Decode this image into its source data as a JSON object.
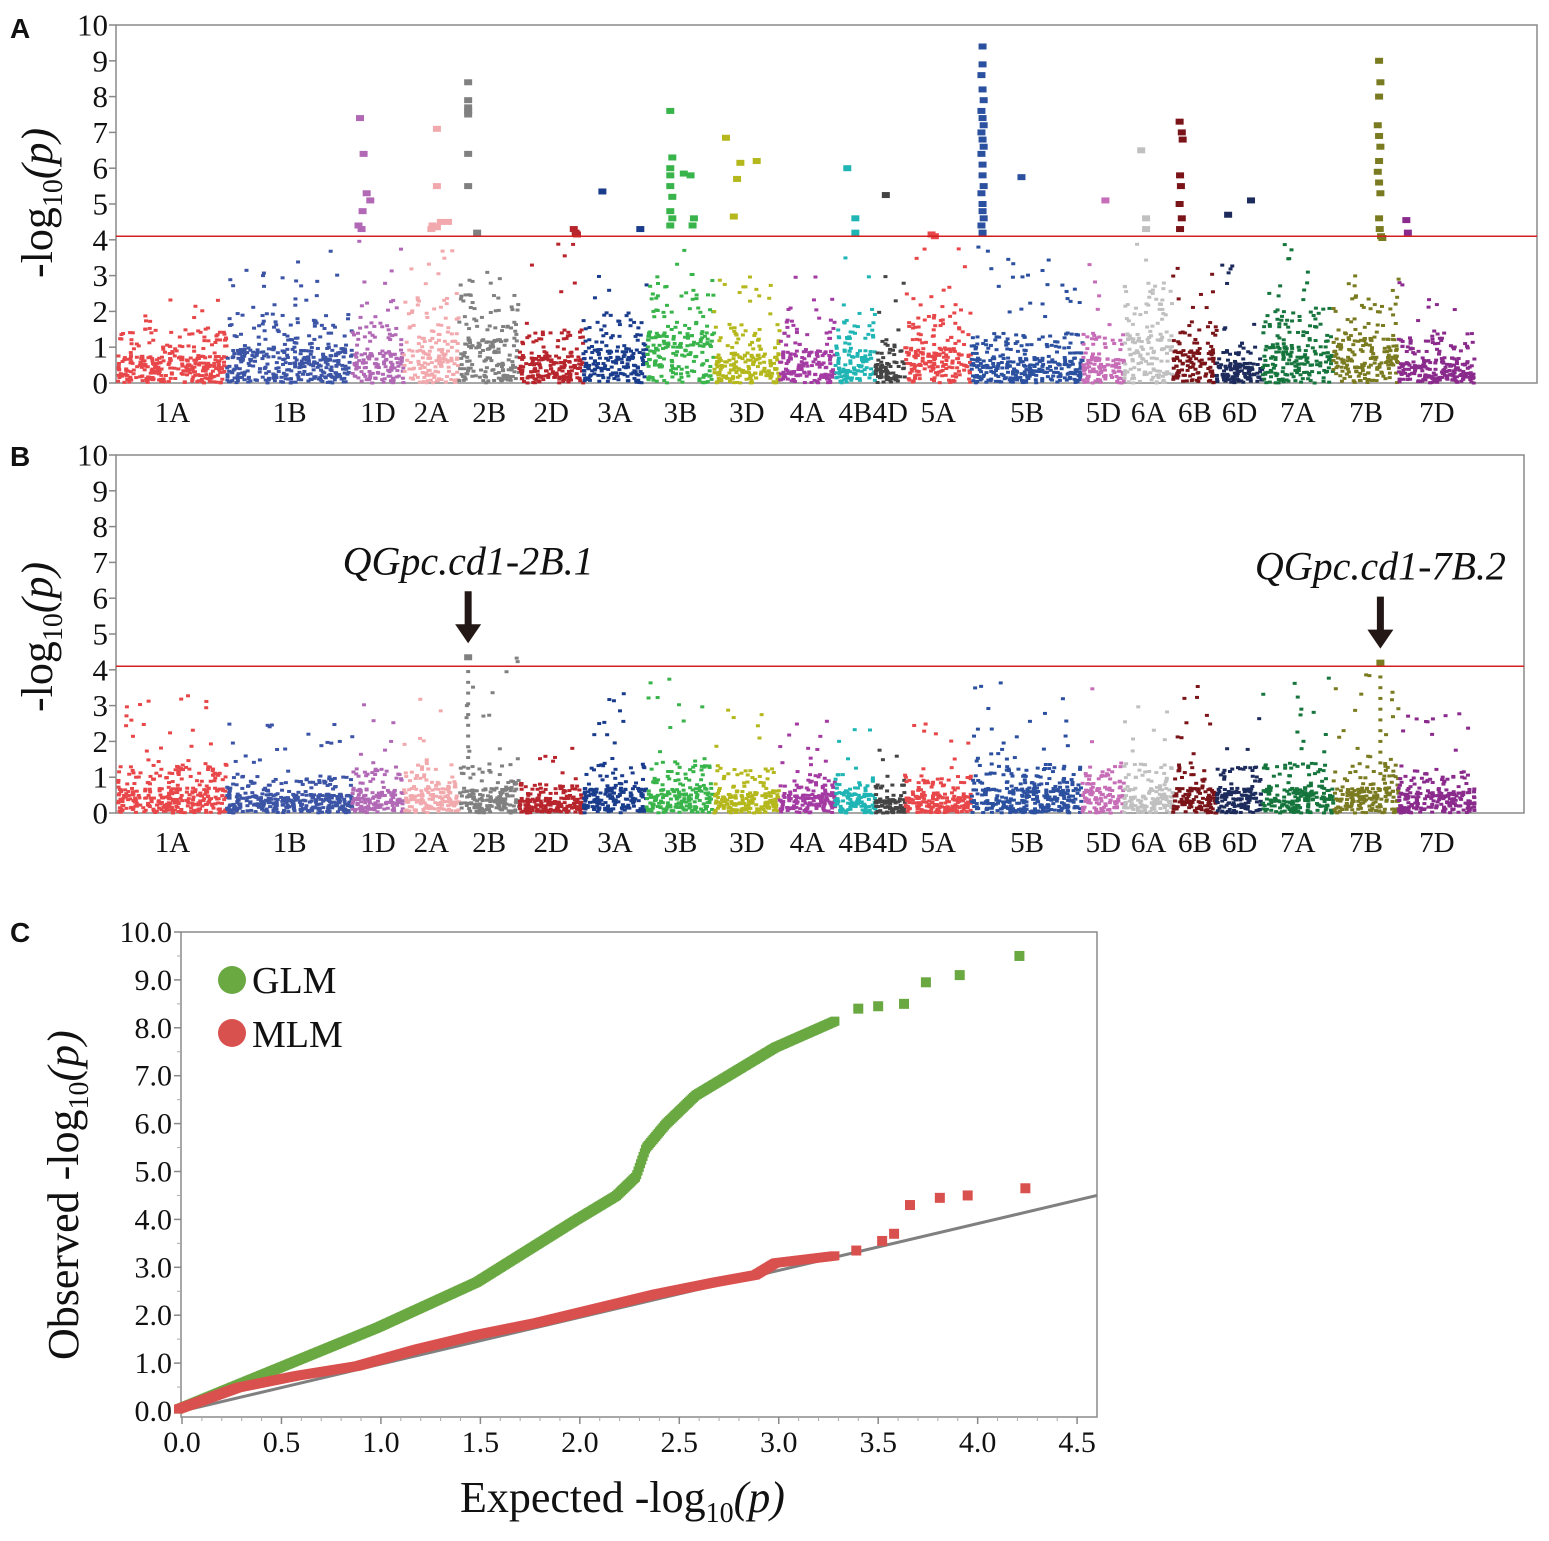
{
  "chart_data": [
    {
      "panel": "A",
      "type": "scatter",
      "title": "",
      "ylabel_main": "-log",
      "ylabel_sub": "10",
      "ylabel_paren": "(p)",
      "ylim": [
        0,
        10
      ],
      "yticks": [
        "0",
        "1",
        "2",
        "3",
        "4",
        "5",
        "6",
        "7",
        "8",
        "9",
        "10"
      ],
      "threshold": 4.1,
      "threshold_color": "#d42020",
      "chromosomes": [
        {
          "name": "1A",
          "start": 0,
          "end": 1.0,
          "color": "#e8474a",
          "base": [
            2.4,
            1.1
          ],
          "peaks": []
        },
        {
          "name": "1B",
          "start": 1.0,
          "end": 2.15,
          "color": "#3c54a5",
          "base": [
            3.7,
            1.4
          ],
          "peaks": []
        },
        {
          "name": "1D",
          "start": 2.15,
          "end": 2.62,
          "color": "#b169b6",
          "base": [
            4.0,
            1.2
          ],
          "peaks": [
            [
              0.15,
              7.4
            ],
            [
              0.22,
              6.4
            ],
            [
              0.28,
              5.3
            ],
            [
              0.35,
              5.1
            ],
            [
              0.2,
              4.8
            ],
            [
              0.12,
              4.4
            ],
            [
              0.18,
              4.3
            ]
          ]
        },
        {
          "name": "2A",
          "start": 2.62,
          "end": 3.13,
          "color": "#f2a9ad",
          "base": [
            3.8,
            1.7
          ],
          "peaks": [
            [
              0.6,
              7.1
            ],
            [
              0.6,
              5.5
            ],
            [
              0.52,
              4.4
            ],
            [
              0.6,
              4.35
            ],
            [
              0.67,
              4.5
            ],
            [
              0.5,
              4.3
            ],
            [
              0.8,
              4.5
            ]
          ]
        },
        {
          "name": "2B",
          "start": 3.13,
          "end": 3.68,
          "color": "#808080",
          "base": [
            3.2,
            1.8
          ],
          "peaks": [
            [
              0.15,
              8.4
            ],
            [
              0.15,
              7.9
            ],
            [
              0.15,
              7.7
            ],
            [
              0.15,
              7.6
            ],
            [
              0.15,
              7.5
            ],
            [
              0.15,
              6.4
            ],
            [
              0.15,
              5.5
            ],
            [
              0.3,
              4.2
            ]
          ]
        },
        {
          "name": "2D",
          "start": 3.68,
          "end": 4.27,
          "color": "#b8242c",
          "base": [
            4.2,
            1.1
          ],
          "peaks": [
            [
              0.85,
              4.3
            ],
            [
              0.88,
              4.2
            ],
            [
              0.9,
              4.15
            ]
          ]
        },
        {
          "name": "3A",
          "start": 4.27,
          "end": 4.85,
          "color": "#1a3c8c",
          "base": [
            3.4,
            1.4
          ],
          "peaks": [
            [
              0.3,
              5.35
            ],
            [
              0.9,
              4.3
            ]
          ]
        },
        {
          "name": "3B",
          "start": 4.85,
          "end": 5.47,
          "color": "#38b44a",
          "base": [
            4.0,
            2.0
          ],
          "peaks": [
            [
              0.35,
              7.6
            ],
            [
              0.38,
              6.3
            ],
            [
              0.35,
              6.0
            ],
            [
              0.35,
              5.8
            ],
            [
              0.35,
              5.5
            ],
            [
              0.38,
              5.2
            ],
            [
              0.35,
              4.8
            ],
            [
              0.38,
              4.6
            ],
            [
              0.35,
              4.4
            ],
            [
              0.55,
              5.85
            ],
            [
              0.65,
              5.8
            ],
            [
              0.7,
              4.6
            ],
            [
              0.68,
              4.4
            ]
          ]
        },
        {
          "name": "3D",
          "start": 5.47,
          "end": 6.07,
          "color": "#b5b81c",
          "base": [
            3.0,
            1.2
          ],
          "peaks": [
            [
              0.18,
              6.85
            ],
            [
              0.4,
              6.15
            ],
            [
              0.35,
              5.7
            ],
            [
              0.3,
              4.65
            ],
            [
              0.65,
              6.2
            ]
          ]
        },
        {
          "name": "4A",
          "start": 6.07,
          "end": 6.58,
          "color": "#a33ba3",
          "base": [
            3.0,
            1.3
          ],
          "peaks": []
        },
        {
          "name": "4B",
          "start": 6.58,
          "end": 6.95,
          "color": "#20b5b5",
          "base": [
            4.0,
            1.4
          ],
          "peaks": [
            [
              0.3,
              6.0
            ],
            [
              0.5,
              4.6
            ],
            [
              0.5,
              4.2
            ]
          ]
        },
        {
          "name": "4D",
          "start": 6.95,
          "end": 7.22,
          "color": "#444444",
          "base": [
            3.3,
            0.9
          ],
          "peaks": [
            [
              0.35,
              5.25
            ]
          ]
        },
        {
          "name": "5A",
          "start": 7.22,
          "end": 7.83,
          "color": "#e8474a",
          "base": [
            3.8,
            1.4
          ],
          "peaks": [
            [
              0.4,
              4.15
            ],
            [
              0.45,
              4.1
            ]
          ]
        },
        {
          "name": "5B",
          "start": 7.83,
          "end": 8.85,
          "color": "#2c50a0",
          "base": [
            3.8,
            1.0
          ],
          "peaks": [
            [
              0.1,
              9.4
            ],
            [
              0.1,
              8.9
            ],
            [
              0.09,
              8.6
            ],
            [
              0.1,
              8.2
            ],
            [
              0.11,
              7.9
            ],
            [
              0.09,
              7.6
            ],
            [
              0.1,
              7.4
            ],
            [
              0.11,
              7.2
            ],
            [
              0.09,
              7.0
            ],
            [
              0.1,
              6.8
            ],
            [
              0.11,
              6.6
            ],
            [
              0.09,
              6.4
            ],
            [
              0.1,
              6.1
            ],
            [
              0.1,
              5.8
            ],
            [
              0.11,
              5.5
            ],
            [
              0.09,
              5.3
            ],
            [
              0.1,
              5.0
            ],
            [
              0.1,
              4.8
            ],
            [
              0.11,
              4.6
            ],
            [
              0.09,
              4.4
            ],
            [
              0.1,
              4.2
            ],
            [
              0.45,
              5.75
            ]
          ]
        },
        {
          "name": "5D",
          "start": 8.85,
          "end": 9.23,
          "color": "#c76cb7",
          "base": [
            3.5,
            1.0
          ],
          "peaks": [
            [
              0.55,
              5.1
            ]
          ]
        },
        {
          "name": "6A",
          "start": 9.23,
          "end": 9.68,
          "color": "#c0c0c0",
          "base": [
            4.0,
            2.0
          ],
          "peaks": [
            [
              0.35,
              6.5
            ],
            [
              0.45,
              4.6
            ],
            [
              0.45,
              4.3
            ]
          ]
        },
        {
          "name": "6B",
          "start": 9.68,
          "end": 10.08,
          "color": "#7a1418",
          "base": [
            3.6,
            1.3
          ],
          "peaks": [
            [
              0.15,
              7.3
            ],
            [
              0.2,
              7.0
            ],
            [
              0.22,
              6.8
            ],
            [
              0.16,
              5.8
            ],
            [
              0.18,
              5.5
            ],
            [
              0.15,
              5.0
            ],
            [
              0.2,
              4.6
            ],
            [
              0.16,
              4.3
            ]
          ]
        },
        {
          "name": "6D",
          "start": 10.08,
          "end": 10.5,
          "color": "#1c2a5c",
          "base": [
            3.8,
            0.8
          ],
          "peaks": [
            [
              0.25,
              4.7
            ],
            [
              0.75,
              5.1
            ]
          ]
        },
        {
          "name": "7A",
          "start": 10.5,
          "end": 11.15,
          "color": "#15753c",
          "base": [
            4.0,
            1.5
          ],
          "peaks": []
        },
        {
          "name": "7B",
          "start": 11.15,
          "end": 11.75,
          "color": "#7a7a20",
          "base": [
            3.5,
            1.8
          ],
          "peaks": [
            [
              0.7,
              9.0
            ],
            [
              0.72,
              8.4
            ],
            [
              0.7,
              8.0
            ],
            [
              0.68,
              7.2
            ],
            [
              0.7,
              6.9
            ],
            [
              0.72,
              6.6
            ],
            [
              0.7,
              6.2
            ],
            [
              0.68,
              5.9
            ],
            [
              0.7,
              5.6
            ],
            [
              0.72,
              5.3
            ],
            [
              0.7,
              4.6
            ],
            [
              0.71,
              4.3
            ],
            [
              0.73,
              4.1
            ],
            [
              0.75,
              4.05
            ]
          ]
        },
        {
          "name": "7D",
          "start": 11.75,
          "end": 12.45,
          "color": "#8a2a8c",
          "base": [
            3.0,
            1.0
          ],
          "peaks": [
            [
              0.1,
              4.55
            ],
            [
              0.12,
              4.2
            ]
          ]
        }
      ],
      "chromosome_labels": [
        "1A",
        "1B",
        "1D",
        "2A",
        "2B",
        "2D",
        "3A",
        "3B",
        "3D",
        "4A",
        "4B",
        "4D",
        "5A",
        "5B",
        "5D",
        "6A",
        "6B",
        "6D",
        "7A",
        "7B",
        "7D"
      ]
    },
    {
      "panel": "B",
      "type": "scatter",
      "title": "",
      "ylabel_main": "-log",
      "ylabel_sub": "10",
      "ylabel_paren": "(p)",
      "ylim": [
        0,
        10
      ],
      "yticks": [
        "0",
        "1",
        "2",
        "3",
        "4",
        "5",
        "6",
        "7",
        "8",
        "9",
        "10"
      ],
      "threshold": 4.1,
      "threshold_color": "#d42020",
      "annotations": [
        {
          "label": "QGpc.cd1-2B.1",
          "chromosome": "2B",
          "pos": 0.15,
          "y": 4.35
        },
        {
          "label": "QGpc.cd1-7B.2",
          "chromosome": "7B",
          "pos": 0.72,
          "y": 4.2
        }
      ],
      "chromosome_labels": [
        "1A",
        "1B",
        "1D",
        "2A",
        "2B",
        "2D",
        "3A",
        "3B",
        "3D",
        "4A",
        "4B",
        "4D",
        "5A",
        "5B",
        "5D",
        "6A",
        "6B",
        "6D",
        "7A",
        "7B",
        "7D"
      ],
      "base_max": {
        "1A": 3.4,
        "1B": 2.5,
        "1D": 3.1,
        "2A": 3.3,
        "2B": 4.35,
        "2D": 2.0,
        "3A": 3.4,
        "3B": 3.8,
        "3D": 3.0,
        "4A": 2.6,
        "4B": 2.6,
        "4D": 1.9,
        "5A": 2.5,
        "5B": 3.9,
        "5D": 3.7,
        "6A": 3.3,
        "6B": 3.7,
        "6D": 3.7,
        "7A": 4.0,
        "7B": 4.2,
        "7D": 2.8
      }
    },
    {
      "panel": "C",
      "type": "scatter",
      "title": "",
      "xlabel_main": "Expected -log",
      "xlabel_sub": "10",
      "xlabel_paren": "(p)",
      "ylabel_main": "Observed -log",
      "ylabel_sub": "10",
      "ylabel_paren": "(p)",
      "xlim": [
        0,
        4.6
      ],
      "ylim": [
        0,
        10
      ],
      "xticks": [
        "0.0",
        "0.5",
        "1.0",
        "1.5",
        "2.0",
        "2.5",
        "3.0",
        "3.5",
        "4.0",
        "4.5"
      ],
      "yticks": [
        "0.0",
        "1.0",
        "2.0",
        "3.0",
        "4.0",
        "5.0",
        "6.0",
        "7.0",
        "8.0",
        "9.0",
        "10.0"
      ],
      "legend_position": "top-left",
      "diagonal": {
        "x": [
          0,
          4.6
        ],
        "y": [
          0,
          4.5
        ],
        "color": "#808080"
      },
      "series": [
        {
          "name": "GLM",
          "color": "#6aa842",
          "curve": [
            [
              0,
              0.05
            ],
            [
              0.5,
              0.9
            ],
            [
              1.0,
              1.75
            ],
            [
              1.5,
              2.7
            ],
            [
              2.0,
              4.0
            ],
            [
              2.2,
              4.5
            ],
            [
              2.3,
              4.9
            ],
            [
              2.35,
              5.5
            ],
            [
              2.45,
              6.0
            ],
            [
              2.6,
              6.6
            ],
            [
              2.8,
              7.1
            ],
            [
              3.0,
              7.6
            ],
            [
              3.3,
              8.15
            ]
          ],
          "outliers": [
            [
              3.42,
              8.4
            ],
            [
              3.52,
              8.45
            ],
            [
              3.65,
              8.5
            ],
            [
              3.76,
              8.95
            ],
            [
              3.93,
              9.1
            ],
            [
              4.23,
              9.5
            ]
          ]
        },
        {
          "name": "MLM",
          "color": "#d9514e",
          "curve": [
            [
              0,
              0.05
            ],
            [
              0.3,
              0.5
            ],
            [
              0.6,
              0.75
            ],
            [
              0.9,
              0.95
            ],
            [
              1.2,
              1.3
            ],
            [
              1.5,
              1.6
            ],
            [
              1.8,
              1.85
            ],
            [
              2.1,
              2.15
            ],
            [
              2.4,
              2.45
            ],
            [
              2.7,
              2.7
            ],
            [
              2.9,
              2.85
            ],
            [
              3.0,
              3.1
            ],
            [
              3.3,
              3.25
            ]
          ],
          "outliers": [
            [
              3.41,
              3.35
            ],
            [
              3.54,
              3.55
            ],
            [
              3.6,
              3.7
            ],
            [
              3.68,
              4.3
            ],
            [
              3.83,
              4.45
            ],
            [
              3.97,
              4.5
            ],
            [
              4.26,
              4.65
            ]
          ]
        }
      ]
    }
  ],
  "panel_labels": [
    "A",
    "B",
    "C"
  ]
}
